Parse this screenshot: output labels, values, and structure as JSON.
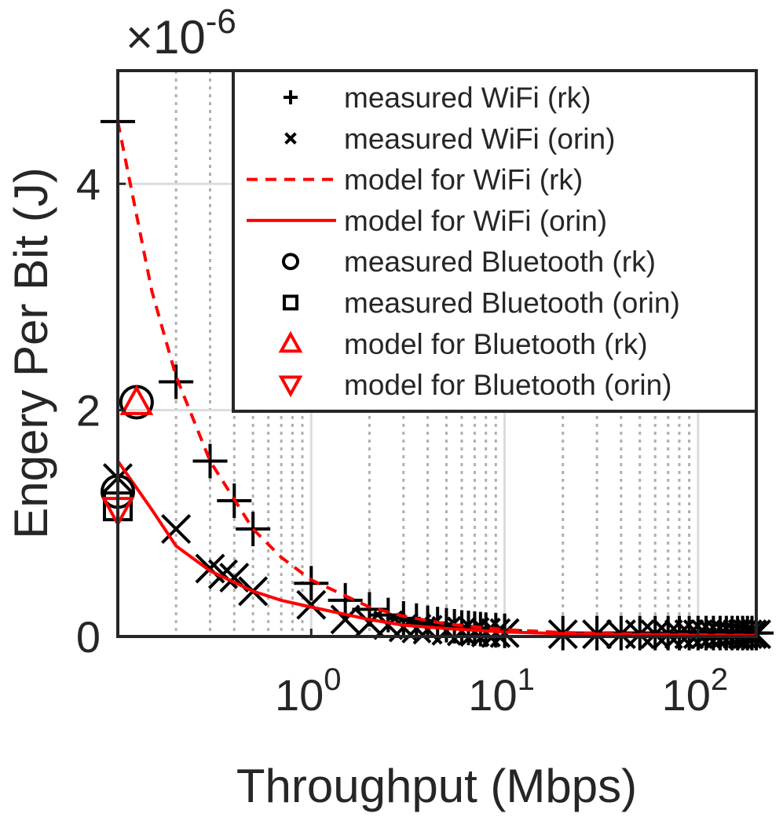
{
  "chart_data": {
    "type": "scatter",
    "title": "",
    "xlabel": "Throughput (Mbps)",
    "ylabel": "Engery Per Bit (J)",
    "x_scale": "log",
    "xlim": [
      0.1,
      200
    ],
    "ylim": [
      0,
      5e-06
    ],
    "y_exponent_label": "×10",
    "y_exponent": "-6",
    "x_ticks": [
      {
        "value": 1,
        "base": "10",
        "exp": "0"
      },
      {
        "value": 10,
        "base": "10",
        "exp": "1"
      },
      {
        "value": 100,
        "base": "10",
        "exp": "2"
      }
    ],
    "y_ticks": [
      {
        "value": 0,
        "label": "0"
      },
      {
        "value": 2e-06,
        "label": "2"
      },
      {
        "value": 4e-06,
        "label": "4"
      }
    ],
    "grid": true,
    "legend_position": "top-right",
    "series": [
      {
        "name": "measured WiFi (rk)",
        "kind": "marker",
        "marker": "plus",
        "color": "#000000",
        "x": [
          0.1,
          0.2,
          0.3,
          0.4,
          0.5,
          1,
          1.5,
          2,
          2.5,
          3,
          3.5,
          4,
          4.5,
          5,
          5.5,
          6,
          6.5,
          7,
          7.5,
          8,
          9,
          10,
          20,
          30,
          40,
          50,
          60,
          70,
          80,
          90,
          100,
          110,
          120,
          130,
          140,
          150,
          160,
          170,
          180,
          190,
          200
        ],
        "y": [
          4.55e-06,
          2.25e-06,
          1.55e-06,
          1.2e-06,
          9.5e-07,
          4.7e-07,
          3.2e-07,
          2.4e-07,
          1.9e-07,
          1.6e-07,
          1.4e-07,
          1.2e-07,
          1.1e-07,
          1e-07,
          9e-08,
          8e-08,
          7.5e-08,
          7e-08,
          6.5e-08,
          6e-08,
          5.5e-08,
          5e-08,
          3e-08,
          3e-08,
          3e-08,
          3e-08,
          3e-08,
          3e-08,
          3e-08,
          3e-08,
          3e-08,
          3e-08,
          3e-08,
          3e-08,
          3e-08,
          3e-08,
          3e-08,
          3e-08,
          3e-08,
          3e-08,
          3e-08
        ]
      },
      {
        "name": "measured WiFi (orin)",
        "kind": "marker",
        "marker": "x",
        "color": "#000000",
        "x": [
          0.1,
          0.2,
          0.3,
          0.35,
          0.4,
          0.5,
          1,
          1.5,
          2,
          2.5,
          3,
          3.5,
          4,
          5,
          6,
          7,
          8,
          9,
          10,
          20,
          30,
          40,
          50,
          60,
          70,
          80,
          90,
          100,
          110,
          120,
          130,
          140,
          150,
          160,
          170,
          180,
          190,
          200
        ],
        "y": [
          1.4e-06,
          9.5e-07,
          6e-07,
          5.5e-07,
          5.2e-07,
          4e-07,
          2.8e-07,
          1.5e-07,
          1.2e-07,
          1e-07,
          8e-08,
          7e-08,
          6e-08,
          5e-08,
          4.5e-08,
          4e-08,
          3.5e-08,
          3e-08,
          3e-08,
          2e-08,
          2e-08,
          2e-08,
          2e-08,
          2e-08,
          2e-08,
          2e-08,
          2e-08,
          2e-08,
          2e-08,
          2e-08,
          2e-08,
          2e-08,
          2e-08,
          2e-08,
          2e-08,
          2e-08,
          2e-08,
          2e-08
        ]
      },
      {
        "name": "model for WiFi (rk)",
        "kind": "line",
        "dash": "14 10",
        "color": "#ff0000",
        "x": [
          0.1,
          0.15,
          0.2,
          0.3,
          0.5,
          0.7,
          1,
          2,
          3,
          5,
          10,
          20,
          50,
          100,
          200
        ],
        "y": [
          4.55e-06,
          3.05e-06,
          2.3e-06,
          1.55e-06,
          9.5e-07,
          7e-07,
          5e-07,
          2.6e-07,
          1.8e-07,
          1.1e-07,
          6e-08,
          3.5e-08,
          2e-08,
          1.5e-08,
          1e-08
        ]
      },
      {
        "name": "model for WiFi (orin)",
        "kind": "line",
        "dash": "",
        "color": "#ff0000",
        "x": [
          0.1,
          0.15,
          0.2,
          0.3,
          0.5,
          0.7,
          1,
          2,
          3,
          5,
          10,
          20,
          50,
          100,
          200
        ],
        "y": [
          1.55e-06,
          1.12e-06,
          8e-07,
          5.8e-07,
          4e-07,
          3.2e-07,
          2.6e-07,
          1.5e-07,
          1e-07,
          7e-08,
          4e-08,
          2.5e-08,
          1.5e-08,
          1e-08,
          8e-09
        ]
      },
      {
        "name": "measured Bluetooth (rk)",
        "kind": "marker",
        "marker": "circle",
        "color": "#000000",
        "x": [
          0.125,
          0.1
        ],
        "y": [
          2.07e-06,
          1.28e-06
        ]
      },
      {
        "name": "measured Bluetooth (orin)",
        "kind": "marker",
        "marker": "square",
        "color": "#000000",
        "x": [
          0.1
        ],
        "y": [
          1.15e-06
        ]
      },
      {
        "name": "model for Bluetooth (rk)",
        "kind": "marker",
        "marker": "triangle-up",
        "color": "#ff0000",
        "x": [
          0.125
        ],
        "y": [
          2.07e-06
        ]
      },
      {
        "name": "model for Bluetooth (orin)",
        "kind": "marker",
        "marker": "triangle-down",
        "color": "#ff0000",
        "x": [
          0.1
        ],
        "y": [
          1.12e-06
        ]
      }
    ]
  }
}
